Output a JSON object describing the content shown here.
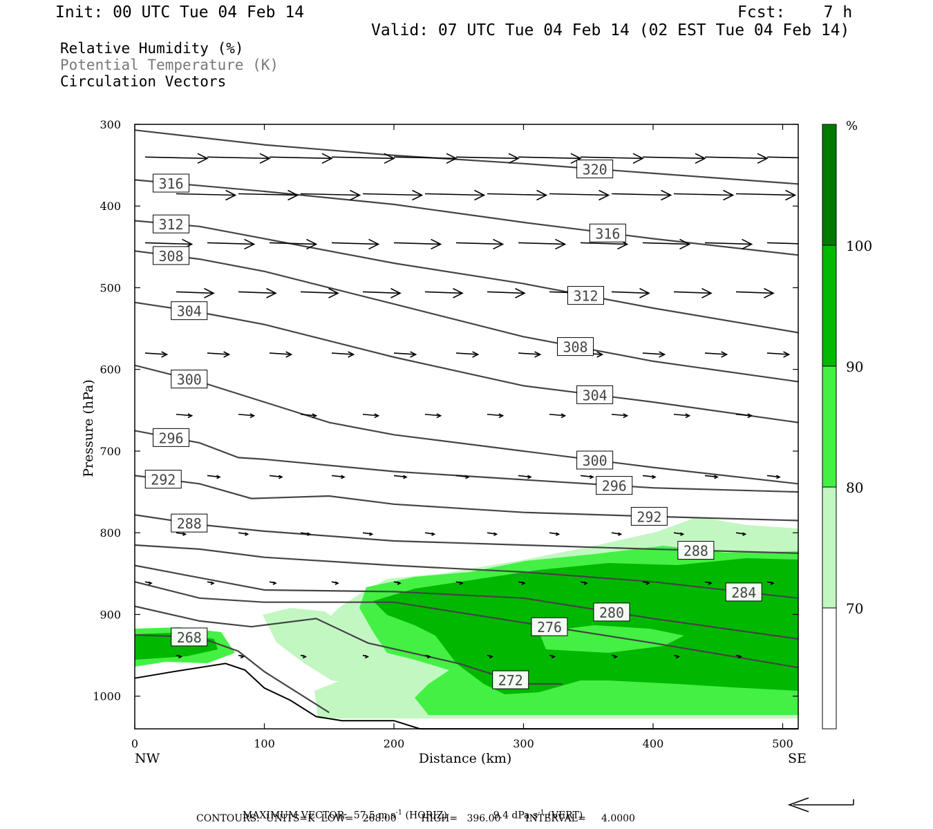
{
  "header": {
    "init": "Init: 00 UTC Tue 04 Feb 14",
    "fcst": "Fcst:    7 h",
    "valid": "Valid: 07 UTC Tue 04 Feb 14 (02 EST Tue 04 Feb 14)"
  },
  "fields": [
    {
      "label": "Relative Humidity (%)",
      "color": "#000000"
    },
    {
      "label": "Potential Temperature (K)",
      "color": "#777777"
    },
    {
      "label": "Circulation Vectors",
      "color": "#000000"
    }
  ],
  "colors": {
    "rh_70_80": "#c2f7c2",
    "rh_80_90": "#44f044",
    "rh_90_100": "#00b800",
    "rh_100_plus": "#007a00",
    "isentrope": "#444444",
    "terrain": "#000000"
  },
  "chart_data": {
    "type": "cross-section",
    "xlabel": "Distance (km)",
    "ylabel": "Pressure (hPa)",
    "xlim": [
      0,
      512
    ],
    "ylim": [
      1040,
      300
    ],
    "x_ticks": [
      0,
      100,
      200,
      300,
      400,
      500
    ],
    "y_ticks": [
      300,
      400,
      500,
      600,
      700,
      800,
      900,
      1000
    ],
    "x_end_labels": {
      "left": "NW",
      "right": "SE"
    },
    "colorbar": {
      "unit": "%",
      "ticks": [
        70,
        80,
        90,
        100
      ]
    },
    "isentropes": [
      {
        "theta": 320,
        "points": [
          [
            0,
            307
          ],
          [
            100,
            325
          ],
          [
            200,
            338
          ],
          [
            300,
            348
          ],
          [
            400,
            360
          ],
          [
            512,
            373
          ]
        ],
        "label_x": 355
      },
      {
        "theta": 316,
        "points": [
          [
            0,
            368
          ],
          [
            50,
            375
          ],
          [
            100,
            382
          ],
          [
            200,
            398
          ],
          [
            300,
            420
          ],
          [
            400,
            440
          ],
          [
            512,
            460
          ]
        ],
        "label_x": 365,
        "label2_x": 28
      },
      {
        "theta": 312,
        "points": [
          [
            0,
            418
          ],
          [
            50,
            425
          ],
          [
            100,
            440
          ],
          [
            200,
            470
          ],
          [
            300,
            495
          ],
          [
            400,
            525
          ],
          [
            512,
            555
          ]
        ],
        "label_x": 348,
        "label2_x": 28
      },
      {
        "theta": 308,
        "points": [
          [
            0,
            455
          ],
          [
            50,
            465
          ],
          [
            100,
            480
          ],
          [
            200,
            520
          ],
          [
            300,
            560
          ],
          [
            400,
            590
          ],
          [
            512,
            615
          ]
        ],
        "label_x": 340,
        "label2_x": 28
      },
      {
        "theta": 304,
        "points": [
          [
            0,
            518
          ],
          [
            50,
            530
          ],
          [
            100,
            545
          ],
          [
            200,
            585
          ],
          [
            300,
            620
          ],
          [
            400,
            640
          ],
          [
            512,
            665
          ]
        ],
        "label_x": 355,
        "label2_x": 42
      },
      {
        "theta": 300,
        "points": [
          [
            0,
            595
          ],
          [
            50,
            615
          ],
          [
            100,
            640
          ],
          [
            150,
            665
          ],
          [
            200,
            680
          ],
          [
            300,
            700
          ],
          [
            400,
            720
          ],
          [
            512,
            740
          ]
        ],
        "label_x": 355,
        "label2_x": 42
      },
      {
        "theta": 296,
        "points": [
          [
            0,
            675
          ],
          [
            50,
            690
          ],
          [
            80,
            708
          ],
          [
            100,
            710
          ],
          [
            200,
            725
          ],
          [
            300,
            735
          ],
          [
            400,
            745
          ],
          [
            512,
            750
          ]
        ],
        "label_x": 370,
        "label2_x": 28
      },
      {
        "theta": 292,
        "points": [
          [
            0,
            730
          ],
          [
            50,
            740
          ],
          [
            90,
            758
          ],
          [
            150,
            755
          ],
          [
            200,
            765
          ],
          [
            300,
            775
          ],
          [
            400,
            780
          ],
          [
            512,
            785
          ]
        ],
        "label_x": 397,
        "label2_x": 22
      },
      {
        "theta": 288,
        "points": [
          [
            0,
            778
          ],
          [
            50,
            790
          ],
          [
            100,
            798
          ],
          [
            200,
            810
          ],
          [
            300,
            815
          ],
          [
            400,
            820
          ],
          [
            512,
            825
          ]
        ],
        "label_x": 433,
        "label2_x": 42
      },
      {
        "theta": 284,
        "points": [
          [
            0,
            815
          ],
          [
            50,
            820
          ],
          [
            100,
            830
          ],
          [
            200,
            840
          ],
          [
            300,
            848
          ],
          [
            400,
            860
          ],
          [
            512,
            880
          ]
        ],
        "label_x": 470
      },
      {
        "theta": 280,
        "points": [
          [
            0,
            840
          ],
          [
            50,
            855
          ],
          [
            100,
            870
          ],
          [
            200,
            872
          ],
          [
            300,
            880
          ],
          [
            400,
            905
          ],
          [
            512,
            930
          ]
        ],
        "label_x": 368
      },
      {
        "theta": 276,
        "points": [
          [
            0,
            860
          ],
          [
            50,
            880
          ],
          [
            100,
            885
          ],
          [
            200,
            885
          ],
          [
            300,
            910
          ],
          [
            400,
            935
          ],
          [
            512,
            965
          ]
        ],
        "label_x": 320
      },
      {
        "theta": 272,
        "points": [
          [
            0,
            890
          ],
          [
            50,
            908
          ],
          [
            90,
            915
          ],
          [
            140,
            905
          ],
          [
            180,
            935
          ],
          [
            250,
            960
          ],
          [
            300,
            985
          ],
          [
            330,
            985
          ]
        ],
        "label_x": 290
      },
      {
        "theta": 268,
        "points": [
          [
            0,
            925
          ],
          [
            50,
            928
          ],
          [
            80,
            945
          ],
          [
            100,
            970
          ],
          [
            120,
            990
          ],
          [
            150,
            1020
          ]
        ],
        "label_x": 42
      }
    ],
    "terrain": [
      [
        0,
        978
      ],
      [
        30,
        970
      ],
      [
        70,
        960
      ],
      [
        85,
        968
      ],
      [
        100,
        990
      ],
      [
        120,
        1005
      ],
      [
        140,
        1025
      ],
      [
        160,
        1030
      ],
      [
        200,
        1030
      ],
      [
        220,
        1040
      ],
      [
        512,
        1040
      ]
    ],
    "vectors": {
      "note": "",
      "rows": [
        {
          "p": 340,
          "u": 1.0
        },
        {
          "p": 385,
          "u": 0.95
        },
        {
          "p": 445,
          "u": 0.75
        },
        {
          "p": 505,
          "u": 0.6
        },
        {
          "p": 580,
          "u": 0.35
        },
        {
          "p": 655,
          "u": 0.25
        },
        {
          "p": 730,
          "u": 0.2
        },
        {
          "p": 800,
          "u": 0.15
        },
        {
          "p": 860,
          "u": 0.1
        },
        {
          "p": 950,
          "u": 0.08
        }
      ]
    }
  },
  "footer": {
    "max_vector_label": "MAXIMUM VECTOR:",
    "max_vector_horiz": "57.5 m s",
    "horiz_tag": " (HORIZ)",
    "max_vector_vert": "9.4 dPa s",
    "vert_tag": " (VERT)",
    "exp": "-1",
    "contours": "CONTOURS:  UNITS=K  LOW=   268.00        HIGH=   396.00        INTERVAL=     4.0000"
  }
}
